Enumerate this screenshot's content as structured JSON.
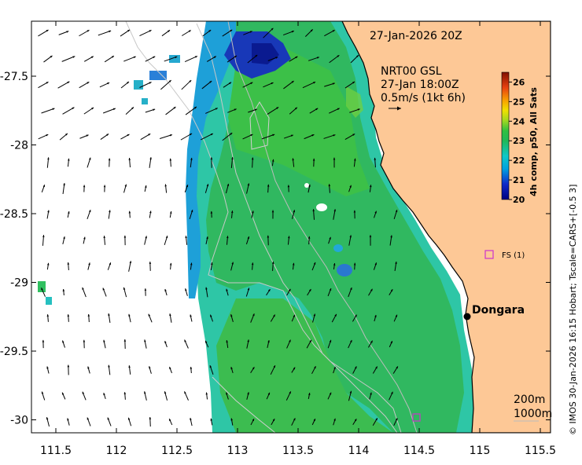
{
  "title": "27-Jan-2026 20Z",
  "current_legend": {
    "line1": "NRT00 GSL",
    "line2": "27-Jan 18:00Z",
    "line3": "0.5m/s (1kt 6h)"
  },
  "colorbar": {
    "label": "4h comp, p50, All Sats",
    "ticks": [
      "20",
      "21",
      "22",
      "23",
      "24",
      "25",
      "26"
    ],
    "min": 20,
    "max": 26.5
  },
  "x_ticks": [
    "111.5",
    "112",
    "112.5",
    "113",
    "113.5",
    "114",
    "114.5",
    "115",
    "115.5"
  ],
  "y_ticks": [
    "-27.5",
    "-28",
    "-28.5",
    "-29",
    "-29.5",
    "-30"
  ],
  "places": [
    {
      "name": "Dongara",
      "lon": 114.92,
      "lat": -29.25
    },
    {
      "name": "FS (1)",
      "lon": 115.05,
      "lat": -28.83
    }
  ],
  "depth_legend": {
    "line1": "200m",
    "line2": "1000m"
  },
  "credit": "© IMOS 30-Jan-2026 16:15 Hobart; Tscale=CARS+[-0.5 3]",
  "colors": {
    "land": "#fdc896",
    "ocean": "#ffffff",
    "marker": "#cc33cc"
  }
}
